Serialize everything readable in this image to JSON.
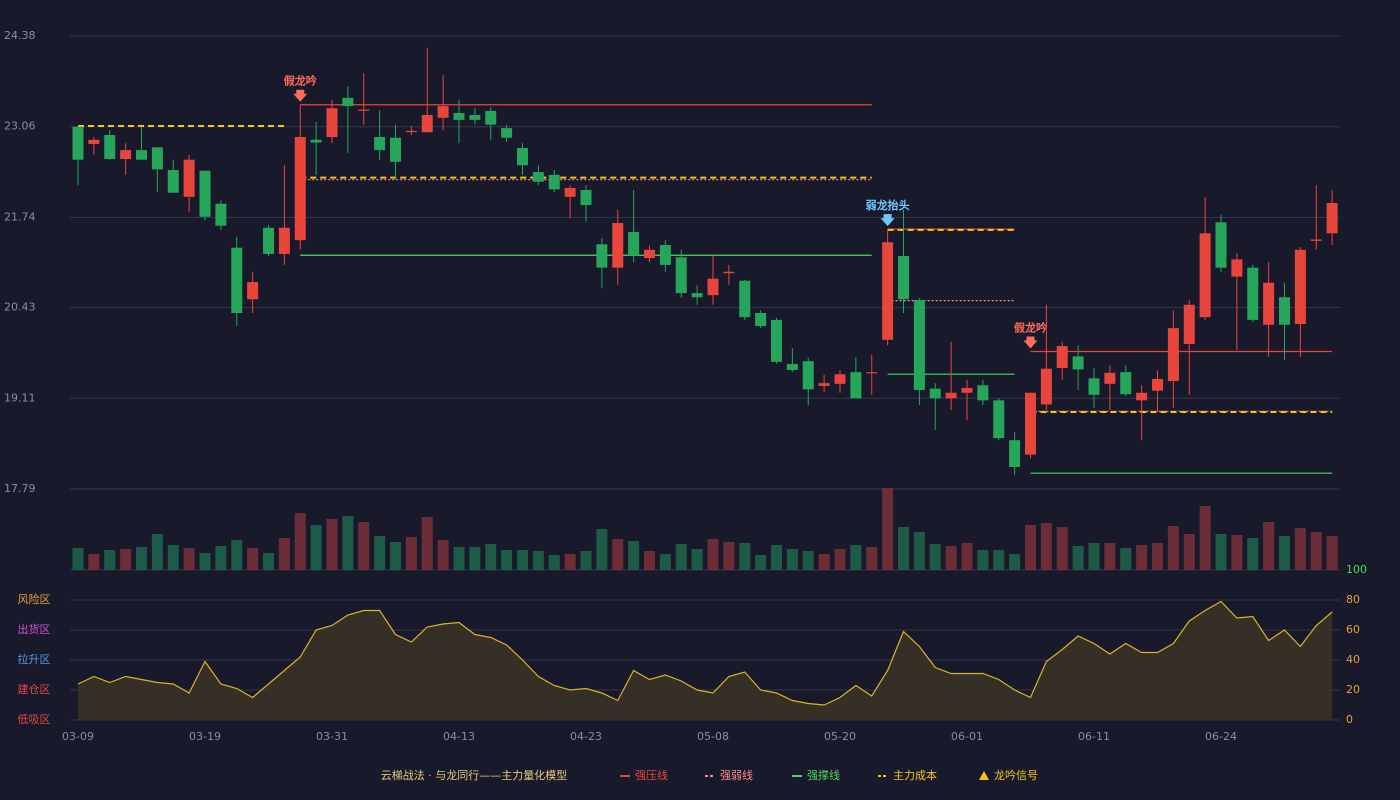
{
  "chart_data": [
    {
      "type": "candlestick",
      "ylim": [
        17.79,
        24.38
      ],
      "yticks": [
        24.38,
        23.06,
        21.74,
        20.43,
        19.11,
        17.79
      ],
      "grid": true,
      "up_color": "#e8453c",
      "down_color": "#26a65b",
      "open": [
        23.06,
        22.81,
        22.94,
        22.59,
        22.72,
        22.76,
        22.43,
        22.04,
        22.42,
        21.94,
        21.3,
        20.55,
        21.59,
        21.21,
        21.41,
        22.87,
        22.91,
        23.48,
        23.3,
        22.91,
        22.9,
        22.99,
        22.98,
        23.19,
        23.26,
        23.23,
        23.29,
        23.04,
        22.75,
        22.4,
        22.36,
        22.04,
        22.14,
        21.35,
        21.01,
        21.53,
        21.15,
        21.34,
        21.16,
        20.64,
        20.61,
        20.93,
        20.82,
        20.35,
        20.25,
        19.61,
        19.65,
        19.29,
        19.32,
        19.49,
        19.48,
        19.96,
        21.18,
        20.54,
        19.25,
        19.11,
        19.19,
        19.3,
        19.08,
        18.5,
        18.29,
        19.02,
        19.55,
        19.72,
        19.4,
        19.32,
        19.49,
        19.08,
        19.22,
        19.36,
        19.9,
        20.29,
        21.67,
        20.88,
        21.01,
        20.18,
        20.58,
        20.19,
        21.4,
        21.51
      ],
      "high": [
        23.06,
        22.91,
        23.01,
        22.82,
        23.06,
        22.76,
        22.58,
        22.65,
        22.42,
        21.99,
        21.46,
        20.95,
        21.63,
        22.5,
        23.38,
        23.13,
        23.45,
        23.65,
        23.84,
        23.3,
        23.09,
        23.07,
        24.21,
        23.81,
        23.45,
        23.33,
        23.35,
        23.09,
        22.82,
        22.5,
        22.43,
        22.21,
        22.21,
        21.44,
        21.85,
        22.14,
        21.33,
        21.41,
        21.27,
        20.76,
        21.19,
        21.05,
        20.83,
        20.39,
        20.28,
        19.84,
        19.7,
        19.45,
        19.52,
        19.71,
        19.74,
        21.56,
        21.85,
        20.57,
        19.33,
        19.93,
        19.38,
        19.38,
        19.11,
        18.62,
        19.19,
        20.47,
        19.93,
        19.88,
        19.55,
        19.59,
        19.59,
        19.3,
        19.52,
        20.39,
        20.54,
        22.04,
        21.78,
        21.22,
        21.05,
        21.09,
        20.79,
        21.31,
        22.21,
        22.14
      ],
      "low": [
        22.21,
        22.65,
        22.58,
        22.36,
        22.58,
        22.11,
        22.1,
        21.82,
        21.7,
        21.56,
        20.16,
        20.35,
        21.18,
        21.05,
        21.27,
        22.36,
        22.82,
        22.68,
        23.09,
        22.58,
        22.29,
        22.94,
        22.98,
        23.01,
        22.82,
        23.09,
        22.87,
        22.84,
        22.36,
        22.21,
        22.11,
        21.73,
        21.68,
        20.71,
        20.76,
        21.09,
        21.09,
        20.95,
        20.57,
        20.47,
        20.47,
        20.76,
        20.25,
        20.13,
        19.61,
        19.49,
        19.01,
        19.2,
        19.19,
        19.11,
        19.16,
        19.88,
        20.35,
        19.01,
        18.65,
        18.94,
        18.79,
        19.01,
        18.5,
        17.99,
        18.24,
        18.94,
        19.38,
        19.23,
        18.97,
        18.94,
        19.14,
        18.5,
        18.91,
        18.97,
        19.16,
        20.25,
        20.95,
        19.81,
        20.22,
        19.71,
        19.67,
        19.71,
        21.27,
        21.34
      ],
      "close": [
        22.58,
        22.87,
        22.59,
        22.72,
        22.58,
        22.44,
        22.1,
        22.58,
        21.75,
        21.62,
        20.35,
        20.8,
        21.21,
        21.59,
        22.91,
        22.83,
        23.33,
        23.36,
        23.31,
        22.72,
        22.55,
        23.0,
        23.23,
        23.36,
        23.16,
        23.16,
        23.09,
        22.9,
        22.5,
        22.26,
        22.15,
        22.17,
        21.92,
        21.01,
        21.66,
        21.19,
        21.27,
        21.05,
        20.64,
        20.58,
        20.85,
        20.95,
        20.29,
        20.16,
        19.64,
        19.52,
        19.24,
        19.33,
        19.46,
        19.11,
        19.49,
        21.38,
        20.55,
        19.23,
        19.11,
        19.19,
        19.26,
        19.08,
        18.53,
        18.11,
        19.19,
        19.54,
        19.87,
        19.53,
        19.16,
        19.48,
        19.17,
        19.19,
        19.39,
        20.13,
        20.47,
        21.51,
        21.01,
        21.13,
        20.25,
        20.79,
        20.18,
        21.27,
        21.42,
        21.95
      ],
      "model_name": "云梯战法 · 与龙同行——主力量化模型",
      "series": [
        {
          "name": "强压线",
          "color": "#e8453c",
          "dash": "solid",
          "values": [
            null,
            null,
            null,
            null,
            null,
            null,
            null,
            null,
            null,
            null,
            null,
            null,
            null,
            null,
            23.38,
            23.38,
            23.38,
            23.38,
            23.38,
            23.38,
            23.38,
            23.38,
            23.38,
            23.38,
            23.38,
            23.38,
            23.38,
            23.38,
            23.38,
            23.38,
            23.38,
            23.38,
            23.38,
            23.38,
            23.38,
            23.38,
            23.38,
            23.38,
            23.38,
            23.38,
            23.38,
            23.38,
            23.38,
            23.38,
            23.38,
            23.38,
            23.38,
            23.38,
            23.38,
            23.38,
            23.38,
            21.57,
            21.57,
            21.57,
            21.57,
            21.57,
            21.57,
            21.57,
            21.57,
            21.57,
            19.79,
            19.79,
            19.79,
            19.79,
            19.79,
            19.79,
            19.79,
            19.79,
            19.79,
            19.79,
            19.79,
            19.79,
            19.79,
            19.79,
            19.79,
            19.79,
            19.79,
            19.79,
            19.79,
            19.79
          ]
        },
        {
          "name": "强弱线",
          "color": "#ff8a8a",
          "dash": "dotted",
          "values": [
            null,
            null,
            null,
            null,
            null,
            null,
            null,
            null,
            null,
            null,
            null,
            null,
            null,
            null,
            22.29,
            22.29,
            22.29,
            22.29,
            22.29,
            22.29,
            22.29,
            22.29,
            22.29,
            22.29,
            22.29,
            22.29,
            22.29,
            22.29,
            22.29,
            22.29,
            22.29,
            22.29,
            22.29,
            22.29,
            22.29,
            22.29,
            22.29,
            22.29,
            22.29,
            22.29,
            22.29,
            22.29,
            22.29,
            22.29,
            22.29,
            22.29,
            22.29,
            22.29,
            22.29,
            22.29,
            22.29,
            20.53,
            20.53,
            20.53,
            20.53,
            20.53,
            20.53,
            20.53,
            20.53,
            20.53,
            18.92,
            18.92,
            18.92,
            18.92,
            18.92,
            18.92,
            18.92,
            18.92,
            18.92,
            18.92,
            18.92,
            18.92,
            18.92,
            18.92,
            18.92,
            18.92,
            18.92,
            18.92,
            18.92,
            18.92
          ]
        },
        {
          "name": "强撑线",
          "color": "#4cd964",
          "dash": "solid",
          "values": [
            null,
            null,
            null,
            null,
            null,
            null,
            null,
            null,
            null,
            null,
            null,
            null,
            null,
            null,
            21.19,
            21.19,
            21.19,
            21.19,
            21.19,
            21.19,
            21.19,
            21.19,
            21.19,
            21.19,
            21.19,
            21.19,
            21.19,
            21.19,
            21.19,
            21.19,
            21.19,
            21.19,
            21.19,
            21.19,
            21.19,
            21.19,
            21.19,
            21.19,
            21.19,
            21.19,
            21.19,
            21.19,
            21.19,
            21.19,
            21.19,
            21.19,
            21.19,
            21.19,
            21.19,
            21.19,
            21.19,
            19.46,
            19.46,
            19.46,
            19.46,
            19.46,
            19.46,
            19.46,
            19.46,
            19.46,
            18.02,
            18.02,
            18.02,
            18.02,
            18.02,
            18.02,
            18.02,
            18.02,
            18.02,
            18.02,
            18.02,
            18.02,
            18.02,
            18.02,
            18.02,
            18.02,
            18.02,
            18.02,
            18.02,
            18.02
          ]
        },
        {
          "name": "主力成本",
          "color": "#f5c518",
          "dash": "dashed",
          "values": [
            23.07,
            23.07,
            23.07,
            23.07,
            23.07,
            23.07,
            23.07,
            23.07,
            23.07,
            23.07,
            23.07,
            23.07,
            23.07,
            23.07,
            22.32,
            22.32,
            22.32,
            22.32,
            22.32,
            22.32,
            22.32,
            22.32,
            22.32,
            22.32,
            22.32,
            22.32,
            22.32,
            22.32,
            22.32,
            22.32,
            22.32,
            22.32,
            22.32,
            22.32,
            22.32,
            22.32,
            22.32,
            22.32,
            22.32,
            22.32,
            22.32,
            22.32,
            22.32,
            22.32,
            22.32,
            22.32,
            22.32,
            22.32,
            22.32,
            22.32,
            22.32,
            21.56,
            21.56,
            21.56,
            21.56,
            21.56,
            21.56,
            21.56,
            21.56,
            21.56,
            18.91,
            18.91,
            18.91,
            18.91,
            18.91,
            18.91,
            18.91,
            18.91,
            18.91,
            18.91,
            18.91,
            18.91,
            18.91,
            18.91,
            18.91,
            18.91,
            18.91,
            18.91,
            18.91,
            18.91
          ]
        }
      ],
      "signal_legend": "龙吟信号",
      "signal_legend_color": "#f5c518",
      "signals": [
        null,
        null,
        null,
        null,
        null,
        null,
        null,
        null,
        null,
        null,
        null,
        null,
        null,
        null,
        {
          "label": "假龙吟",
          "color": "#ff6b5b"
        },
        null,
        null,
        null,
        null,
        null,
        null,
        null,
        null,
        null,
        null,
        null,
        null,
        null,
        null,
        null,
        null,
        null,
        null,
        null,
        null,
        null,
        null,
        null,
        null,
        null,
        null,
        null,
        null,
        null,
        null,
        null,
        null,
        null,
        null,
        null,
        null,
        {
          "label": "弱龙抬头",
          "color": "#6cc8ff"
        },
        null,
        null,
        null,
        null,
        null,
        null,
        null,
        null,
        {
          "label": "假龙吟",
          "color": "#ff6b5b"
        },
        null,
        null,
        null,
        null,
        null,
        null,
        null,
        null,
        null,
        null,
        null,
        null,
        null,
        null,
        null,
        null,
        null,
        null,
        null
      ]
    },
    {
      "type": "bar",
      "up_color": "#6b2e38",
      "down_color": "#1e5a48",
      "values": [
        22,
        16,
        20,
        21,
        23,
        36,
        25,
        22,
        17,
        24,
        30,
        22,
        17,
        32,
        57,
        45,
        51,
        54,
        48,
        34,
        28,
        33,
        53,
        30,
        23,
        23,
        26,
        20,
        20,
        19,
        15,
        16,
        19,
        41,
        31,
        29,
        19,
        16,
        26,
        21,
        31,
        28,
        27,
        15,
        25,
        21,
        19,
        16,
        21,
        25,
        23,
        82,
        43,
        38,
        26,
        24,
        27,
        20,
        20,
        16,
        45,
        47,
        43,
        24,
        27,
        27,
        22,
        25,
        27,
        44,
        36,
        64,
        36,
        35,
        32,
        48,
        34,
        42,
        38,
        34
      ]
    },
    {
      "type": "line",
      "ylim": [
        0,
        100
      ],
      "yticks": [
        0,
        20,
        40,
        60,
        80,
        100
      ],
      "grid": true,
      "color": "#d9b42a",
      "fill": "#3a3226",
      "tick_color": "#e8a03a",
      "zones": [
        {
          "label": "风险区",
          "value": 80,
          "color": "#e8a03a"
        },
        {
          "label": "出货区",
          "value": 60,
          "color": "#d552d5"
        },
        {
          "label": "拉升区",
          "value": 40,
          "color": "#4f9fe8"
        },
        {
          "label": "建仓区",
          "value": 20,
          "color": "#e84545"
        },
        {
          "label": "低吸区",
          "value": 0,
          "color": "#e84545"
        }
      ],
      "categories": [
        "03-09",
        null,
        null,
        null,
        null,
        null,
        null,
        null,
        "03-19",
        null,
        null,
        null,
        null,
        null,
        null,
        null,
        "03-31",
        null,
        null,
        null,
        null,
        null,
        null,
        null,
        "04-13",
        null,
        null,
        null,
        null,
        null,
        null,
        null,
        "04-23",
        null,
        null,
        null,
        null,
        null,
        null,
        null,
        "05-08",
        null,
        null,
        null,
        null,
        null,
        null,
        null,
        "05-20",
        null,
        null,
        null,
        null,
        null,
        null,
        null,
        "06-01",
        null,
        null,
        null,
        null,
        null,
        null,
        null,
        "06-11",
        null,
        null,
        null,
        null,
        null,
        null,
        null,
        "06-24",
        null,
        null,
        null,
        null,
        null,
        null,
        null
      ],
      "values": [
        24,
        29,
        25,
        29,
        27,
        25,
        24,
        18,
        39,
        24,
        21,
        15,
        24,
        33,
        42,
        60,
        63,
        70,
        73,
        73,
        57,
        52,
        62,
        64,
        65,
        57,
        55,
        50,
        40,
        29,
        23,
        20,
        21,
        18,
        13,
        33,
        27,
        30,
        26,
        20,
        18,
        29,
        32,
        20,
        18,
        13,
        11,
        10,
        15,
        23,
        16,
        33,
        59,
        49,
        35,
        31,
        31,
        31,
        27,
        20,
        15,
        39,
        47,
        56,
        51,
        44,
        51,
        45,
        45,
        51,
        66,
        73,
        79,
        68,
        69,
        53,
        60,
        49,
        63,
        72
      ]
    }
  ]
}
